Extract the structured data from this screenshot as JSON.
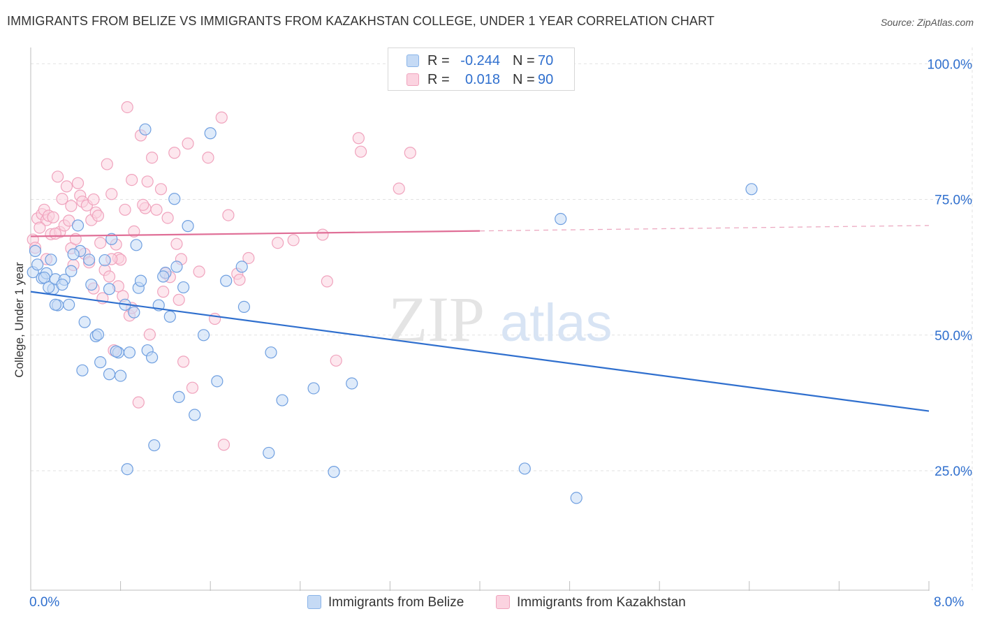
{
  "title": "IMMIGRANTS FROM BELIZE VS IMMIGRANTS FROM KAZAKHSTAN COLLEGE, UNDER 1 YEAR CORRELATION CHART",
  "source": "Source: ZipAtlas.com",
  "watermark": {
    "zip": "ZIP",
    "atlas": "atlas"
  },
  "legend": {
    "r_label": "R =",
    "n_label": "N =",
    "rows": [
      {
        "series": "Immigrants from Belize",
        "r": "-0.244",
        "n": "70",
        "color": "#8ab4e8",
        "fill": "#c5daf5"
      },
      {
        "series": "Immigrants from Kazakhstan",
        "r": "0.018",
        "n": "90",
        "color": "#f0a3bd",
        "fill": "#fbd3e0"
      }
    ]
  },
  "chart_data": {
    "type": "scatter",
    "title": "IMMIGRANTS FROM BELIZE VS IMMIGRANTS FROM KAZAKHSTAN COLLEGE, UNDER 1 YEAR CORRELATION CHART",
    "xlabel": "",
    "ylabel": "College, Under 1 year",
    "xlim": [
      0,
      8
    ],
    "ylim": [
      3,
      103
    ],
    "x_tick_labels": [
      "0.0%",
      "8.0%"
    ],
    "y_tick_values": [
      25,
      50,
      75,
      100
    ],
    "y_tick_labels": [
      "25.0%",
      "50.0%",
      "75.0%",
      "100.0%"
    ],
    "grid": true,
    "series": [
      {
        "name": "Immigrants from Belize",
        "color": "#2f6fce",
        "marker_fill": "#c5daf5",
        "marker_stroke": "#6f9fe0",
        "trend": {
          "x0": 0,
          "y0": 58.0,
          "x1": 8,
          "y1": 36.0,
          "dashed_from": null
        },
        "points": [
          [
            0.02,
            61.6
          ],
          [
            0.06,
            63.0
          ],
          [
            0.1,
            60.5
          ],
          [
            0.14,
            61.4
          ],
          [
            0.18,
            63.9
          ],
          [
            0.04,
            65.5
          ],
          [
            0.2,
            58.5
          ],
          [
            0.24,
            55.5
          ],
          [
            0.22,
            60.3
          ],
          [
            0.3,
            60.2
          ],
          [
            0.28,
            59.3
          ],
          [
            0.34,
            55.6
          ],
          [
            0.36,
            61.8
          ],
          [
            0.44,
            65.5
          ],
          [
            0.42,
            70.2
          ],
          [
            0.48,
            52.4
          ],
          [
            0.46,
            43.5
          ],
          [
            0.54,
            59.3
          ],
          [
            0.58,
            49.8
          ],
          [
            0.6,
            50.1
          ],
          [
            0.66,
            63.8
          ],
          [
            0.7,
            58.5
          ],
          [
            0.7,
            42.8
          ],
          [
            0.72,
            67.7
          ],
          [
            0.78,
            46.8
          ],
          [
            0.8,
            42.5
          ],
          [
            0.84,
            55.6
          ],
          [
            0.86,
            25.3
          ],
          [
            0.88,
            46.8
          ],
          [
            0.92,
            54.2
          ],
          [
            0.96,
            58.7
          ],
          [
            0.94,
            66.6
          ],
          [
            0.98,
            60.0
          ],
          [
            1.02,
            87.9
          ],
          [
            1.04,
            47.2
          ],
          [
            1.08,
            45.9
          ],
          [
            1.1,
            29.7
          ],
          [
            1.14,
            55.5
          ],
          [
            1.2,
            61.5
          ],
          [
            1.18,
            60.8
          ],
          [
            1.24,
            53.4
          ],
          [
            1.28,
            75.1
          ],
          [
            1.32,
            38.6
          ],
          [
            1.3,
            62.6
          ],
          [
            1.36,
            58.8
          ],
          [
            1.4,
            70.1
          ],
          [
            1.46,
            35.3
          ],
          [
            1.54,
            50.0
          ],
          [
            1.6,
            87.2
          ],
          [
            1.66,
            41.5
          ],
          [
            1.74,
            60.0
          ],
          [
            1.88,
            62.6
          ],
          [
            1.9,
            55.2
          ],
          [
            2.14,
            46.8
          ],
          [
            2.12,
            28.3
          ],
          [
            2.24,
            38.0
          ],
          [
            2.52,
            40.2
          ],
          [
            2.7,
            24.8
          ],
          [
            2.86,
            41.1
          ],
          [
            4.4,
            25.4
          ],
          [
            4.72,
            71.4
          ],
          [
            4.86,
            20.0
          ],
          [
            6.42,
            76.9
          ],
          [
            0.12,
            60.6
          ],
          [
            0.16,
            58.8
          ],
          [
            0.22,
            55.6
          ],
          [
            0.52,
            63.9
          ],
          [
            0.62,
            45.0
          ],
          [
            0.76,
            47.0
          ],
          [
            0.38,
            64.9
          ]
        ]
      },
      {
        "name": "Immigrants from Kazakhstan",
        "color": "#e06f97",
        "marker_fill": "#fbd3e0",
        "marker_stroke": "#f0a3bd",
        "trend": {
          "x0": 0,
          "y0": 68.2,
          "x1": 8,
          "y1": 70.2,
          "dashed_from": 4.0
        },
        "points": [
          [
            0.02,
            67.6
          ],
          [
            0.04,
            66.1
          ],
          [
            0.06,
            71.5
          ],
          [
            0.1,
            72.3
          ],
          [
            0.12,
            73.1
          ],
          [
            0.14,
            71.2
          ],
          [
            0.16,
            72.0
          ],
          [
            0.2,
            71.7
          ],
          [
            0.18,
            68.6
          ],
          [
            0.24,
            79.2
          ],
          [
            0.26,
            69.0
          ],
          [
            0.28,
            75.1
          ],
          [
            0.3,
            70.2
          ],
          [
            0.34,
            71.1
          ],
          [
            0.36,
            66.0
          ],
          [
            0.38,
            62.9
          ],
          [
            0.4,
            67.7
          ],
          [
            0.44,
            75.7
          ],
          [
            0.46,
            74.6
          ],
          [
            0.48,
            65.0
          ],
          [
            0.5,
            73.9
          ],
          [
            0.52,
            63.4
          ],
          [
            0.54,
            71.2
          ],
          [
            0.56,
            58.6
          ],
          [
            0.58,
            72.6
          ],
          [
            0.62,
            67.0
          ],
          [
            0.64,
            56.8
          ],
          [
            0.66,
            62.0
          ],
          [
            0.68,
            81.5
          ],
          [
            0.7,
            60.8
          ],
          [
            0.72,
            76.0
          ],
          [
            0.74,
            47.2
          ],
          [
            0.76,
            66.7
          ],
          [
            0.78,
            64.2
          ],
          [
            0.8,
            63.9
          ],
          [
            0.82,
            57.2
          ],
          [
            0.84,
            73.1
          ],
          [
            0.86,
            92.0
          ],
          [
            0.88,
            53.6
          ],
          [
            0.9,
            78.6
          ],
          [
            0.92,
            69.1
          ],
          [
            0.96,
            37.6
          ],
          [
            0.98,
            86.8
          ],
          [
            1.02,
            73.4
          ],
          [
            1.04,
            78.3
          ],
          [
            1.06,
            50.1
          ],
          [
            1.08,
            82.7
          ],
          [
            1.12,
            73.1
          ],
          [
            1.16,
            76.9
          ],
          [
            1.2,
            61.4
          ],
          [
            1.22,
            71.6
          ],
          [
            1.24,
            60.7
          ],
          [
            1.28,
            83.6
          ],
          [
            1.3,
            66.8
          ],
          [
            1.32,
            56.5
          ],
          [
            1.34,
            64.0
          ],
          [
            1.36,
            45.1
          ],
          [
            1.4,
            85.3
          ],
          [
            1.44,
            40.3
          ],
          [
            1.5,
            61.7
          ],
          [
            1.58,
            82.7
          ],
          [
            1.64,
            53.0
          ],
          [
            1.7,
            90.1
          ],
          [
            1.72,
            29.8
          ],
          [
            1.76,
            72.1
          ],
          [
            1.84,
            61.3
          ],
          [
            1.86,
            60.2
          ],
          [
            1.94,
            64.2
          ],
          [
            2.2,
            67.0
          ],
          [
            2.34,
            67.5
          ],
          [
            2.6,
            68.5
          ],
          [
            2.64,
            59.9
          ],
          [
            2.72,
            45.3
          ],
          [
            2.92,
            86.3
          ],
          [
            2.94,
            83.8
          ],
          [
            3.28,
            77.0
          ],
          [
            3.38,
            83.6
          ],
          [
            0.08,
            69.8
          ],
          [
            0.32,
            77.4
          ],
          [
            0.42,
            78.0
          ],
          [
            0.6,
            72.0
          ],
          [
            0.78,
            59.0
          ],
          [
            0.9,
            55.0
          ],
          [
            1.0,
            74.0
          ],
          [
            1.18,
            58.0
          ],
          [
            0.22,
            68.7
          ],
          [
            0.14,
            64.0
          ],
          [
            0.36,
            73.8
          ],
          [
            0.56,
            75.0
          ],
          [
            0.72,
            64.0
          ]
        ]
      }
    ]
  },
  "axes": {
    "y_label": "College, Under 1 year",
    "x_min_label": "0.0%",
    "x_max_label": "8.0%"
  }
}
